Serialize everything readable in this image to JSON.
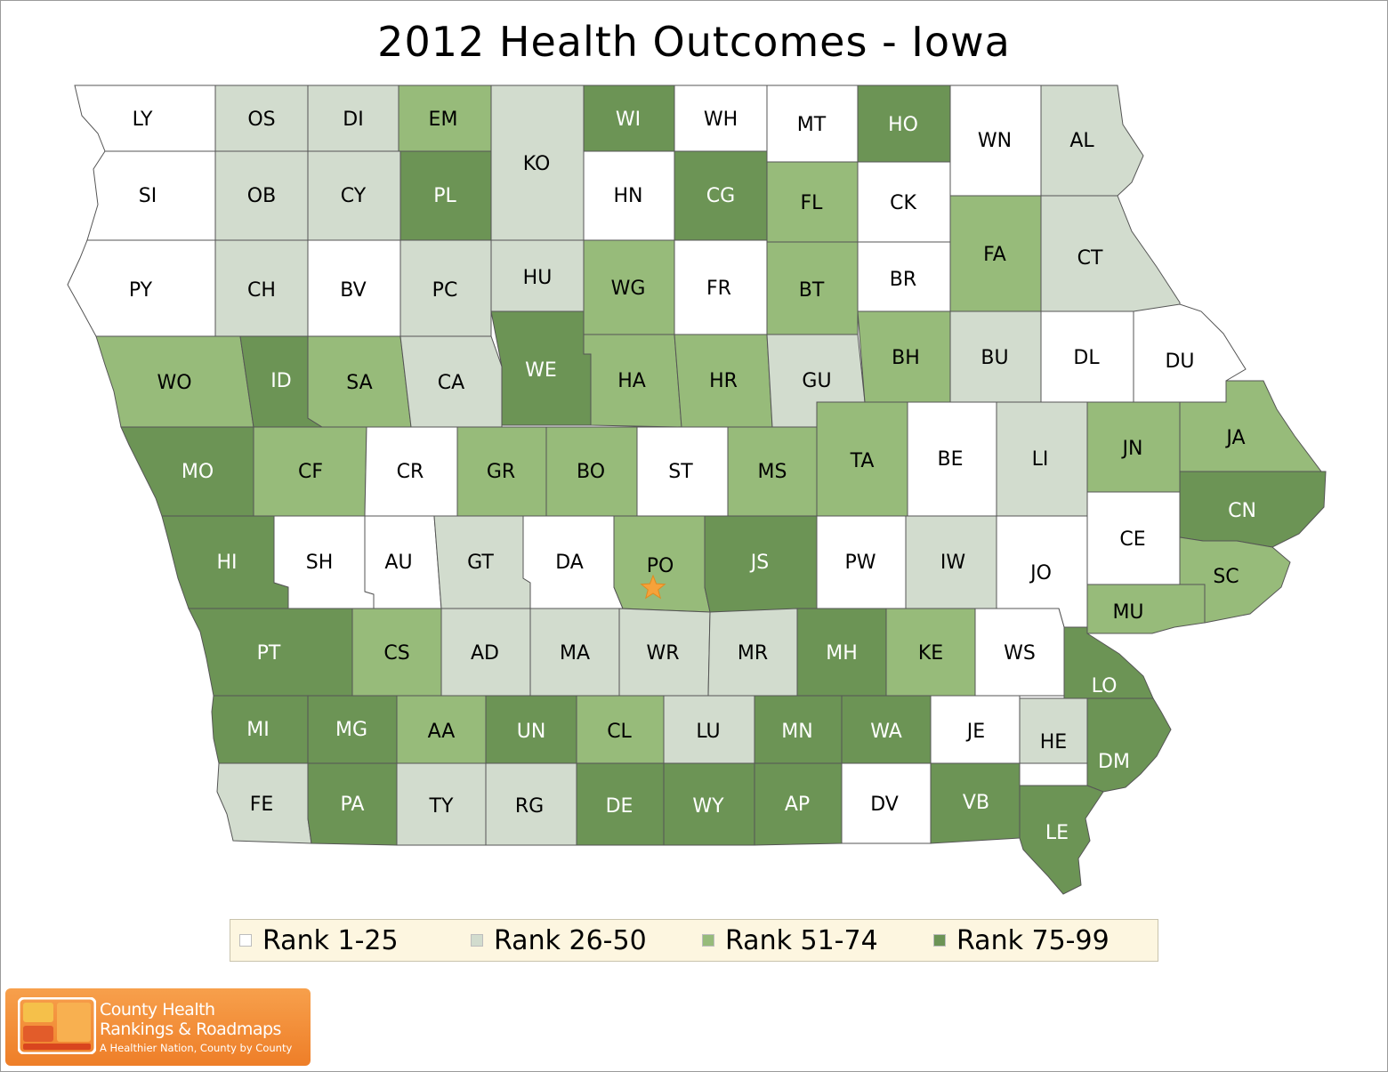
{
  "title": "2012 Health Outcomes - Iowa",
  "colors": {
    "rank_1_25": "#ffffff",
    "rank_26_50": "#d2dcce",
    "rank_51_74": "#97bb7a",
    "rank_75_99": "#6c9455",
    "border": "#555555",
    "star": "#f6a23a"
  },
  "legend": [
    {
      "label": "Rank 1-25",
      "tier": 1
    },
    {
      "label": "Rank 26-50",
      "tier": 2
    },
    {
      "label": "Rank 51-74",
      "tier": 3
    },
    {
      "label": "Rank 75-99",
      "tier": 4
    }
  ],
  "counties": [
    {
      "code": "LY",
      "tier": 1
    },
    {
      "code": "OS",
      "tier": 2
    },
    {
      "code": "DI",
      "tier": 2
    },
    {
      "code": "EM",
      "tier": 3
    },
    {
      "code": "KO",
      "tier": 2
    },
    {
      "code": "WI",
      "tier": 4
    },
    {
      "code": "WH",
      "tier": 1
    },
    {
      "code": "MT",
      "tier": 1
    },
    {
      "code": "HO",
      "tier": 4
    },
    {
      "code": "WN",
      "tier": 1
    },
    {
      "code": "AL",
      "tier": 2
    },
    {
      "code": "SI",
      "tier": 1
    },
    {
      "code": "OB",
      "tier": 2
    },
    {
      "code": "CY",
      "tier": 2
    },
    {
      "code": "PL",
      "tier": 4
    },
    {
      "code": "HN",
      "tier": 1
    },
    {
      "code": "CG",
      "tier": 4
    },
    {
      "code": "FL",
      "tier": 3
    },
    {
      "code": "CK",
      "tier": 1
    },
    {
      "code": "FA",
      "tier": 3
    },
    {
      "code": "CT",
      "tier": 2
    },
    {
      "code": "PY",
      "tier": 1
    },
    {
      "code": "CH",
      "tier": 2
    },
    {
      "code": "BV",
      "tier": 1
    },
    {
      "code": "PC",
      "tier": 2
    },
    {
      "code": "HU",
      "tier": 2
    },
    {
      "code": "WG",
      "tier": 3
    },
    {
      "code": "FR",
      "tier": 1
    },
    {
      "code": "BT",
      "tier": 3
    },
    {
      "code": "BR",
      "tier": 1
    },
    {
      "code": "WO",
      "tier": 3
    },
    {
      "code": "ID",
      "tier": 4
    },
    {
      "code": "SA",
      "tier": 3
    },
    {
      "code": "CA",
      "tier": 2
    },
    {
      "code": "WE",
      "tier": 4
    },
    {
      "code": "HA",
      "tier": 3
    },
    {
      "code": "HR",
      "tier": 3
    },
    {
      "code": "GU",
      "tier": 2
    },
    {
      "code": "BH",
      "tier": 3
    },
    {
      "code": "BU",
      "tier": 2
    },
    {
      "code": "DL",
      "tier": 1
    },
    {
      "code": "DU",
      "tier": 1
    },
    {
      "code": "MO",
      "tier": 4
    },
    {
      "code": "CF",
      "tier": 3
    },
    {
      "code": "CR",
      "tier": 1
    },
    {
      "code": "GR",
      "tier": 3
    },
    {
      "code": "BO",
      "tier": 3
    },
    {
      "code": "ST",
      "tier": 1
    },
    {
      "code": "MS",
      "tier": 3
    },
    {
      "code": "TA",
      "tier": 3
    },
    {
      "code": "BE",
      "tier": 1
    },
    {
      "code": "LI",
      "tier": 2
    },
    {
      "code": "JN",
      "tier": 3
    },
    {
      "code": "JA",
      "tier": 3
    },
    {
      "code": "CN",
      "tier": 4
    },
    {
      "code": "HI",
      "tier": 4
    },
    {
      "code": "SH",
      "tier": 1
    },
    {
      "code": "AU",
      "tier": 1
    },
    {
      "code": "GT",
      "tier": 2
    },
    {
      "code": "DA",
      "tier": 1
    },
    {
      "code": "PO",
      "tier": 3
    },
    {
      "code": "JS",
      "tier": 4
    },
    {
      "code": "PW",
      "tier": 1
    },
    {
      "code": "IW",
      "tier": 2
    },
    {
      "code": "JO",
      "tier": 1
    },
    {
      "code": "CE",
      "tier": 1
    },
    {
      "code": "SC",
      "tier": 3
    },
    {
      "code": "MU",
      "tier": 3
    },
    {
      "code": "PT",
      "tier": 4
    },
    {
      "code": "CS",
      "tier": 3
    },
    {
      "code": "AD",
      "tier": 2
    },
    {
      "code": "MA",
      "tier": 2
    },
    {
      "code": "WR",
      "tier": 2
    },
    {
      "code": "MR",
      "tier": 2
    },
    {
      "code": "MH",
      "tier": 4
    },
    {
      "code": "KE",
      "tier": 3
    },
    {
      "code": "WS",
      "tier": 1
    },
    {
      "code": "LO",
      "tier": 4
    },
    {
      "code": "MI",
      "tier": 4
    },
    {
      "code": "MG",
      "tier": 4
    },
    {
      "code": "AA",
      "tier": 3
    },
    {
      "code": "UN",
      "tier": 4
    },
    {
      "code": "CL",
      "tier": 3
    },
    {
      "code": "LU",
      "tier": 2
    },
    {
      "code": "MN",
      "tier": 4
    },
    {
      "code": "WA",
      "tier": 4
    },
    {
      "code": "JE",
      "tier": 1
    },
    {
      "code": "HE",
      "tier": 2
    },
    {
      "code": "DM",
      "tier": 4
    },
    {
      "code": "FE",
      "tier": 2
    },
    {
      "code": "PA",
      "tier": 4
    },
    {
      "code": "TY",
      "tier": 2
    },
    {
      "code": "RG",
      "tier": 2
    },
    {
      "code": "DE",
      "tier": 4
    },
    {
      "code": "WY",
      "tier": 4
    },
    {
      "code": "AP",
      "tier": 4
    },
    {
      "code": "DV",
      "tier": 1
    },
    {
      "code": "VB",
      "tier": 4
    },
    {
      "code": "LE",
      "tier": 4
    }
  ],
  "marker": {
    "county": "PO",
    "icon": "star-icon"
  },
  "logo": {
    "line1": "County Health",
    "line2": "Rankings & Roadmaps",
    "tagline": "A Healthier Nation, County by County"
  }
}
